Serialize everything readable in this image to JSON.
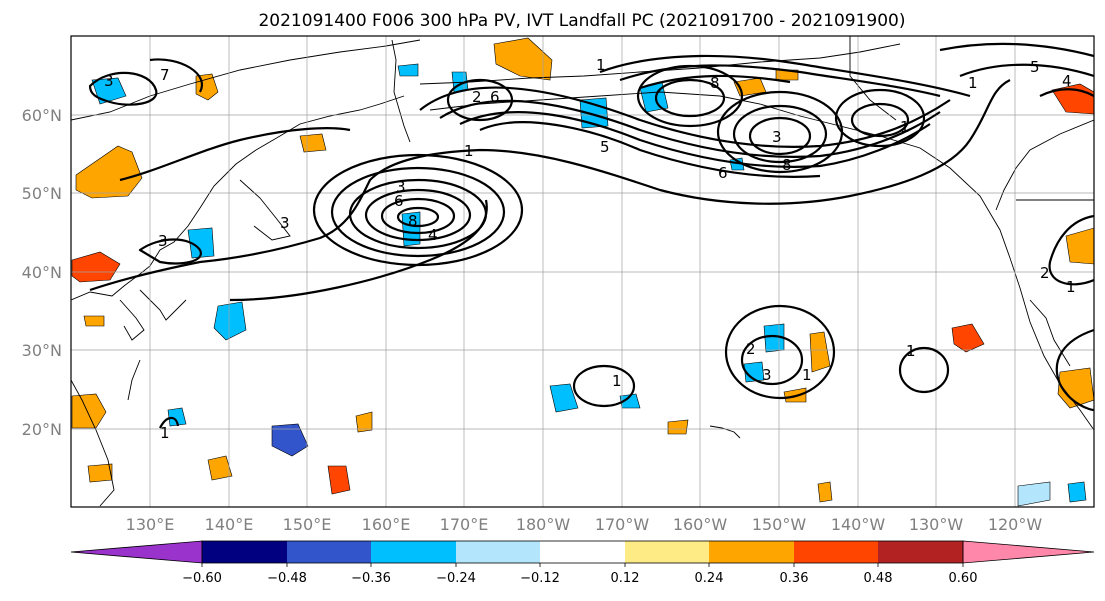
{
  "title": "2021091400 F006 300 hPa PV, IVT Landfall PC (2021091700 - 2021091900)",
  "lat_labels": [
    "60°N",
    "50°N",
    "40°N",
    "30°N",
    "20°N"
  ],
  "lon_labels": [
    "130°E",
    "140°E",
    "150°E",
    "160°E",
    "170°E",
    "180°W",
    "170°W",
    "160°W",
    "150°W",
    "140°W",
    "130°W",
    "120°W"
  ],
  "colorbar": {
    "colors": [
      "#9933cc",
      "#000080",
      "#3355cc",
      "#00bfff",
      "#b3e5fc",
      "#ffffff",
      "#ffeb85",
      "#ffa500",
      "#ff4500",
      "#b22222",
      "#ff88aa"
    ],
    "tick_labels": [
      "−0.60",
      "−0.48",
      "−0.36",
      "−0.24",
      "−0.12",
      "0.12",
      "0.24",
      "0.36",
      "0.48",
      "0.60"
    ],
    "ticks": [
      -0.6,
      -0.48,
      -0.36,
      -0.24,
      -0.12,
      0.12,
      0.24,
      0.36,
      0.48,
      0.6
    ]
  },
  "contour_labels": [
    "3",
    "7",
    "1",
    "6",
    "2",
    "8",
    "1",
    "5",
    "6",
    "3",
    "8",
    "1",
    "5",
    "4",
    "1",
    "3",
    "3",
    "8",
    "6",
    "4",
    "3",
    "2",
    "3",
    "1",
    "1",
    "1",
    "1",
    "2",
    "1"
  ],
  "map": {
    "lat_range": [
      10,
      70
    ],
    "lon_range": [
      120,
      250
    ],
    "fill_field": "IVT Landfall PC",
    "contour_field": "300 hPa PV"
  }
}
